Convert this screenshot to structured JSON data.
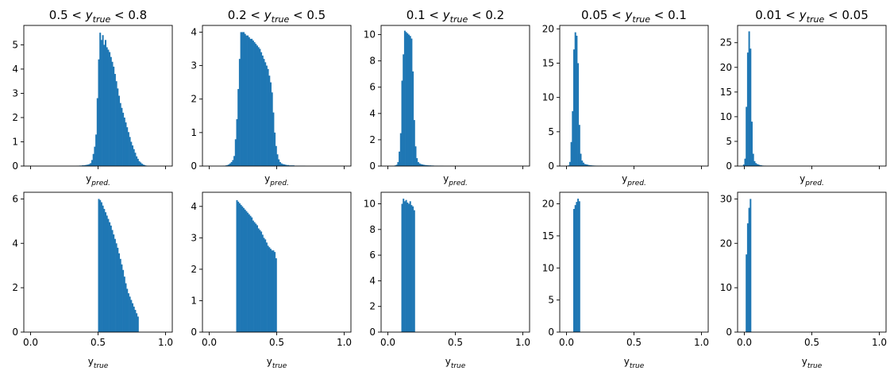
{
  "figure": {
    "bar_color": "#1f77b4",
    "axes_color": "#000000"
  },
  "chart_data": [
    {
      "type": "bar",
      "panel": "row1-col1",
      "title": "0.5 < y_true < 0.8",
      "title_parts": [
        "0.5 < ",
        "y",
        "true",
        " < 0.8"
      ],
      "xlabel": "y",
      "xlabel_sub": "pred.",
      "xlim": [
        -0.05,
        1.05
      ],
      "ylim": [
        0,
        5.8
      ],
      "yticks": [
        "0",
        "1",
        "2",
        "3",
        "4",
        "5"
      ],
      "xticks": [],
      "bin_width": 0.01,
      "bin_left": [
        0.34,
        0.35,
        0.36,
        0.37,
        0.38,
        0.39,
        0.4,
        0.41,
        0.42,
        0.43,
        0.44,
        0.45,
        0.46,
        0.47,
        0.48,
        0.49,
        0.5,
        0.51,
        0.52,
        0.53,
        0.54,
        0.55,
        0.56,
        0.57,
        0.58,
        0.59,
        0.6,
        0.61,
        0.62,
        0.63,
        0.64,
        0.65,
        0.66,
        0.67,
        0.68,
        0.69,
        0.7,
        0.71,
        0.72,
        0.73,
        0.74,
        0.75,
        0.76,
        0.77,
        0.78,
        0.79,
        0.8,
        0.81,
        0.82,
        0.83,
        0.84,
        0.85,
        0.86
      ],
      "values": [
        0.01,
        0.01,
        0.02,
        0.02,
        0.03,
        0.03,
        0.04,
        0.05,
        0.06,
        0.08,
        0.12,
        0.25,
        0.5,
        0.8,
        1.3,
        2.8,
        4.4,
        5.5,
        5.2,
        5.4,
        5.0,
        5.2,
        4.9,
        4.8,
        4.7,
        4.5,
        4.3,
        4.1,
        3.8,
        3.5,
        3.2,
        2.9,
        2.6,
        2.4,
        2.2,
        2.0,
        1.8,
        1.6,
        1.4,
        1.2,
        1.0,
        0.85,
        0.7,
        0.55,
        0.4,
        0.3,
        0.2,
        0.15,
        0.1,
        0.06,
        0.04,
        0.02,
        0.01
      ]
    },
    {
      "type": "bar",
      "panel": "row1-col2",
      "title": "0.2 < y_true < 0.5",
      "title_parts": [
        "0.2 < ",
        "y",
        "true",
        " < 0.5"
      ],
      "xlabel": "y",
      "xlabel_sub": "pred.",
      "xlim": [
        -0.05,
        1.05
      ],
      "ylim": [
        0,
        4.2
      ],
      "yticks": [
        "0",
        "1",
        "2",
        "3",
        "4"
      ],
      "xticks": [],
      "bin_width": 0.01,
      "bin_left": [
        0.1,
        0.11,
        0.12,
        0.13,
        0.14,
        0.15,
        0.16,
        0.17,
        0.18,
        0.19,
        0.2,
        0.21,
        0.22,
        0.23,
        0.24,
        0.25,
        0.26,
        0.27,
        0.28,
        0.29,
        0.3,
        0.31,
        0.32,
        0.33,
        0.34,
        0.35,
        0.36,
        0.37,
        0.38,
        0.39,
        0.4,
        0.41,
        0.42,
        0.43,
        0.44,
        0.45,
        0.46,
        0.47,
        0.48,
        0.49,
        0.5,
        0.51,
        0.52,
        0.53,
        0.54,
        0.55,
        0.56,
        0.57,
        0.58,
        0.59,
        0.6,
        0.61,
        0.62,
        0.63,
        0.64,
        0.65,
        0.66,
        0.67,
        0.68,
        0.69,
        0.7
      ],
      "values": [
        0.01,
        0.01,
        0.02,
        0.03,
        0.05,
        0.08,
        0.12,
        0.18,
        0.3,
        0.8,
        1.4,
        2.3,
        3.2,
        4.0,
        4.0,
        4.0,
        3.95,
        3.9,
        3.9,
        3.85,
        3.8,
        3.8,
        3.75,
        3.7,
        3.65,
        3.6,
        3.55,
        3.5,
        3.4,
        3.3,
        3.2,
        3.1,
        3.0,
        2.9,
        2.7,
        2.5,
        2.2,
        1.6,
        1.0,
        0.6,
        0.35,
        0.2,
        0.12,
        0.08,
        0.06,
        0.05,
        0.04,
        0.03,
        0.03,
        0.02,
        0.02,
        0.02,
        0.02,
        0.01,
        0.01,
        0.01,
        0.01,
        0.01,
        0.01,
        0.01,
        0.01
      ]
    },
    {
      "type": "bar",
      "panel": "row1-col3",
      "title": "0.1 < y_true < 0.2",
      "title_parts": [
        "0.1 < ",
        "y",
        "true",
        " < 0.2"
      ],
      "xlabel": "y",
      "xlabel_sub": "pred.",
      "xlim": [
        -0.05,
        1.05
      ],
      "ylim": [
        0,
        10.7
      ],
      "yticks": [
        "0",
        "2",
        "4",
        "6",
        "8",
        "10"
      ],
      "xticks": [],
      "bin_width": 0.01,
      "bin_left": [
        0.04,
        0.05,
        0.06,
        0.07,
        0.08,
        0.09,
        0.1,
        0.11,
        0.12,
        0.13,
        0.14,
        0.15,
        0.16,
        0.17,
        0.18,
        0.19,
        0.2,
        0.21,
        0.22,
        0.23,
        0.24,
        0.25,
        0.26,
        0.27,
        0.28,
        0.29,
        0.3,
        0.31,
        0.32,
        0.33,
        0.34,
        0.35,
        0.36,
        0.37,
        0.38,
        0.39,
        0.4
      ],
      "values": [
        0.02,
        0.05,
        0.1,
        0.3,
        1.1,
        2.5,
        6.5,
        8.5,
        10.3,
        10.2,
        10.1,
        10.0,
        9.9,
        9.7,
        7.2,
        3.5,
        1.5,
        0.6,
        0.3,
        0.2,
        0.15,
        0.12,
        0.1,
        0.08,
        0.07,
        0.06,
        0.05,
        0.05,
        0.04,
        0.04,
        0.03,
        0.03,
        0.03,
        0.02,
        0.02,
        0.02,
        0.02
      ]
    },
    {
      "type": "bar",
      "panel": "row1-col4",
      "title": "0.05 < y_true < 0.1",
      "title_parts": [
        "0.05 < ",
        "y",
        "true",
        " < 0.1"
      ],
      "xlabel": "y",
      "xlabel_sub": "pred.",
      "xlim": [
        -0.05,
        1.05
      ],
      "ylim": [
        0,
        20.5
      ],
      "yticks": [
        "0",
        "5",
        "10",
        "15",
        "20"
      ],
      "xticks": [],
      "bin_width": 0.01,
      "bin_left": [
        0.01,
        0.02,
        0.03,
        0.04,
        0.05,
        0.06,
        0.07,
        0.08,
        0.09,
        0.1,
        0.11,
        0.12,
        0.13,
        0.14,
        0.15,
        0.16,
        0.17,
        0.18,
        0.19,
        0.2,
        0.21,
        0.22,
        0.23,
        0.24,
        0.25
      ],
      "values": [
        0.1,
        0.6,
        3.5,
        8.0,
        17.0,
        19.5,
        19.0,
        15.0,
        6.0,
        1.8,
        0.8,
        0.5,
        0.3,
        0.25,
        0.2,
        0.15,
        0.12,
        0.1,
        0.08,
        0.07,
        0.06,
        0.05,
        0.04,
        0.03,
        0.03
      ]
    },
    {
      "type": "bar",
      "panel": "row1-col5",
      "title": "0.01 < y_true < 0.05",
      "title_parts": [
        "0.01 < ",
        "y",
        "true",
        " < 0.05"
      ],
      "xlabel": "y",
      "xlabel_sub": "pred.",
      "xlim": [
        -0.05,
        1.05
      ],
      "ylim": [
        0,
        28.5
      ],
      "yticks": [
        "0",
        "5",
        "10",
        "15",
        "20",
        "25"
      ],
      "xticks": [],
      "bin_width": 0.01,
      "bin_left": [
        -0.01,
        0.0,
        0.01,
        0.02,
        0.03,
        0.04,
        0.05,
        0.06,
        0.07,
        0.08,
        0.09,
        0.1,
        0.11,
        0.12,
        0.13,
        0.14,
        0.15
      ],
      "values": [
        0.3,
        1.5,
        12.0,
        23.0,
        27.3,
        23.8,
        9.0,
        2.5,
        1.0,
        0.6,
        0.4,
        0.3,
        0.2,
        0.15,
        0.1,
        0.08,
        0.05
      ]
    },
    {
      "type": "bar",
      "panel": "row2-col1",
      "xlabel": "y",
      "xlabel_sub": "true",
      "xlim": [
        -0.05,
        1.05
      ],
      "ylim": [
        0,
        6.3
      ],
      "yticks": [
        "0",
        "2",
        "4",
        "6"
      ],
      "xticks": [
        "0.0",
        "0.5",
        "1.0"
      ],
      "xtick_values": [
        0,
        0.5,
        1.0
      ],
      "bin_width": 0.01,
      "bin_left": [
        0.5,
        0.51,
        0.52,
        0.53,
        0.54,
        0.55,
        0.56,
        0.57,
        0.58,
        0.59,
        0.6,
        0.61,
        0.62,
        0.63,
        0.64,
        0.65,
        0.66,
        0.67,
        0.68,
        0.69,
        0.7,
        0.71,
        0.72,
        0.73,
        0.74,
        0.75,
        0.76,
        0.77,
        0.78,
        0.79
      ],
      "values": [
        6.0,
        5.95,
        5.85,
        5.7,
        5.55,
        5.4,
        5.25,
        5.1,
        4.95,
        4.8,
        4.6,
        4.4,
        4.2,
        4.0,
        3.8,
        3.55,
        3.3,
        3.05,
        2.8,
        2.5,
        2.2,
        1.95,
        1.75,
        1.6,
        1.45,
        1.3,
        1.15,
        1.0,
        0.85,
        0.7
      ]
    },
    {
      "type": "bar",
      "panel": "row2-col2",
      "xlabel": "y",
      "xlabel_sub": "true",
      "xlim": [
        -0.05,
        1.05
      ],
      "ylim": [
        0,
        4.45
      ],
      "yticks": [
        "0",
        "1",
        "2",
        "3",
        "4"
      ],
      "xticks": [
        "0.0",
        "0.5",
        "1.0"
      ],
      "xtick_values": [
        0,
        0.5,
        1.0
      ],
      "bin_width": 0.01,
      "bin_left": [
        0.2,
        0.21,
        0.22,
        0.23,
        0.24,
        0.25,
        0.26,
        0.27,
        0.28,
        0.29,
        0.3,
        0.31,
        0.32,
        0.33,
        0.34,
        0.35,
        0.36,
        0.37,
        0.38,
        0.39,
        0.4,
        0.41,
        0.42,
        0.43,
        0.44,
        0.45,
        0.46,
        0.47,
        0.48,
        0.49
      ],
      "values": [
        4.2,
        4.15,
        4.1,
        4.05,
        4.0,
        3.95,
        3.9,
        3.85,
        3.8,
        3.75,
        3.7,
        3.65,
        3.55,
        3.5,
        3.45,
        3.4,
        3.3,
        3.25,
        3.2,
        3.1,
        3.0,
        2.95,
        2.85,
        2.75,
        2.7,
        2.65,
        2.6,
        2.6,
        2.55,
        2.35
      ]
    },
    {
      "type": "bar",
      "panel": "row2-col3",
      "xlabel": "y",
      "xlabel_sub": "true",
      "xlim": [
        -0.05,
        1.05
      ],
      "ylim": [
        0,
        10.9
      ],
      "yticks": [
        "0",
        "2",
        "4",
        "6",
        "8",
        "10"
      ],
      "xticks": [
        "0.0",
        "0.5",
        "1.0"
      ],
      "xtick_values": [
        0,
        0.5,
        1.0
      ],
      "bin_width": 0.01,
      "bin_left": [
        0.1,
        0.11,
        0.12,
        0.13,
        0.14,
        0.15,
        0.16,
        0.17,
        0.18,
        0.19
      ],
      "values": [
        10.0,
        10.4,
        10.2,
        10.3,
        10.1,
        10.0,
        10.2,
        9.9,
        9.8,
        9.5
      ]
    },
    {
      "type": "bar",
      "panel": "row2-col4",
      "xlabel": "y",
      "xlabel_sub": "true",
      "xlim": [
        -0.05,
        1.05
      ],
      "ylim": [
        0,
        21.8
      ],
      "yticks": [
        "0",
        "5",
        "10",
        "15",
        "20"
      ],
      "xticks": [
        "0.0",
        "0.5",
        "1.0"
      ],
      "xtick_values": [
        0,
        0.5,
        1.0
      ],
      "bin_width": 0.01,
      "bin_left": [
        0.05,
        0.06,
        0.07,
        0.08,
        0.09
      ],
      "values": [
        19.2,
        19.8,
        20.3,
        20.8,
        20.4
      ]
    },
    {
      "type": "bar",
      "panel": "row2-col5",
      "xlabel": "y",
      "xlabel_sub": "true",
      "xlim": [
        -0.05,
        1.05
      ],
      "ylim": [
        0,
        31.5
      ],
      "yticks": [
        "0",
        "10",
        "20",
        "30"
      ],
      "xticks": [
        "0.0",
        "0.5",
        "1.0"
      ],
      "xtick_values": [
        0,
        0.5,
        1.0
      ],
      "bin_width": 0.01,
      "bin_left": [
        0.01,
        0.02,
        0.03,
        0.04
      ],
      "values": [
        17.5,
        24.5,
        28.0,
        30.0
      ]
    }
  ]
}
